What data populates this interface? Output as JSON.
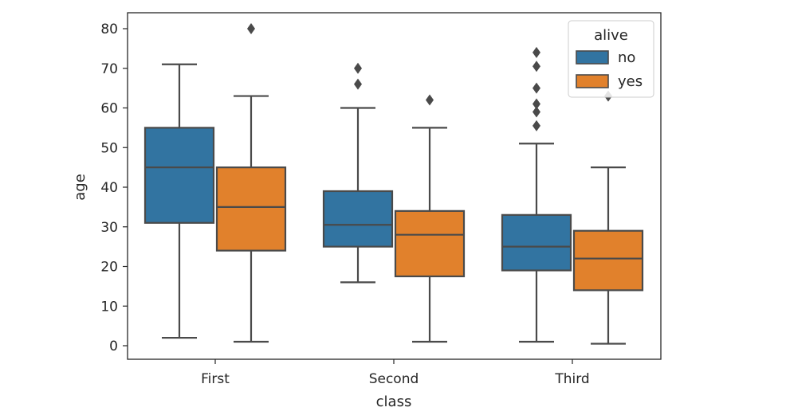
{
  "chart_data": {
    "type": "boxplot",
    "xlabel": "class",
    "ylabel": "age",
    "ylim": [
      -4,
      84
    ],
    "yticks": [
      0,
      10,
      20,
      30,
      40,
      50,
      60,
      70,
      80
    ],
    "categories": [
      "First",
      "Second",
      "Third"
    ],
    "legend": {
      "title": "alive",
      "placement": "top-right"
    },
    "grid": false,
    "series": [
      {
        "name": "no",
        "color": "#3274a1",
        "boxes": [
          {
            "whisker_low": 2,
            "q1": 31,
            "median": 45,
            "q3": 55,
            "whisker_high": 71,
            "outliers": []
          },
          {
            "whisker_low": 16,
            "q1": 25,
            "median": 30.5,
            "q3": 39,
            "whisker_high": 60,
            "outliers": [
              66,
              70
            ]
          },
          {
            "whisker_low": 1,
            "q1": 19,
            "median": 25,
            "q3": 33,
            "whisker_high": 51,
            "outliers": [
              55.5,
              59,
              61,
              65,
              70.5,
              74
            ]
          }
        ]
      },
      {
        "name": "yes",
        "color": "#e1812c",
        "boxes": [
          {
            "whisker_low": 1,
            "q1": 24,
            "median": 35,
            "q3": 45,
            "whisker_high": 63,
            "outliers": [
              80
            ]
          },
          {
            "whisker_low": 1,
            "q1": 17.5,
            "median": 28,
            "q3": 34,
            "whisker_high": 55,
            "outliers": [
              62
            ]
          },
          {
            "whisker_low": 0.5,
            "q1": 14,
            "median": 22,
            "q3": 29,
            "whisker_high": 45,
            "outliers": [
              63
            ]
          }
        ]
      }
    ]
  }
}
